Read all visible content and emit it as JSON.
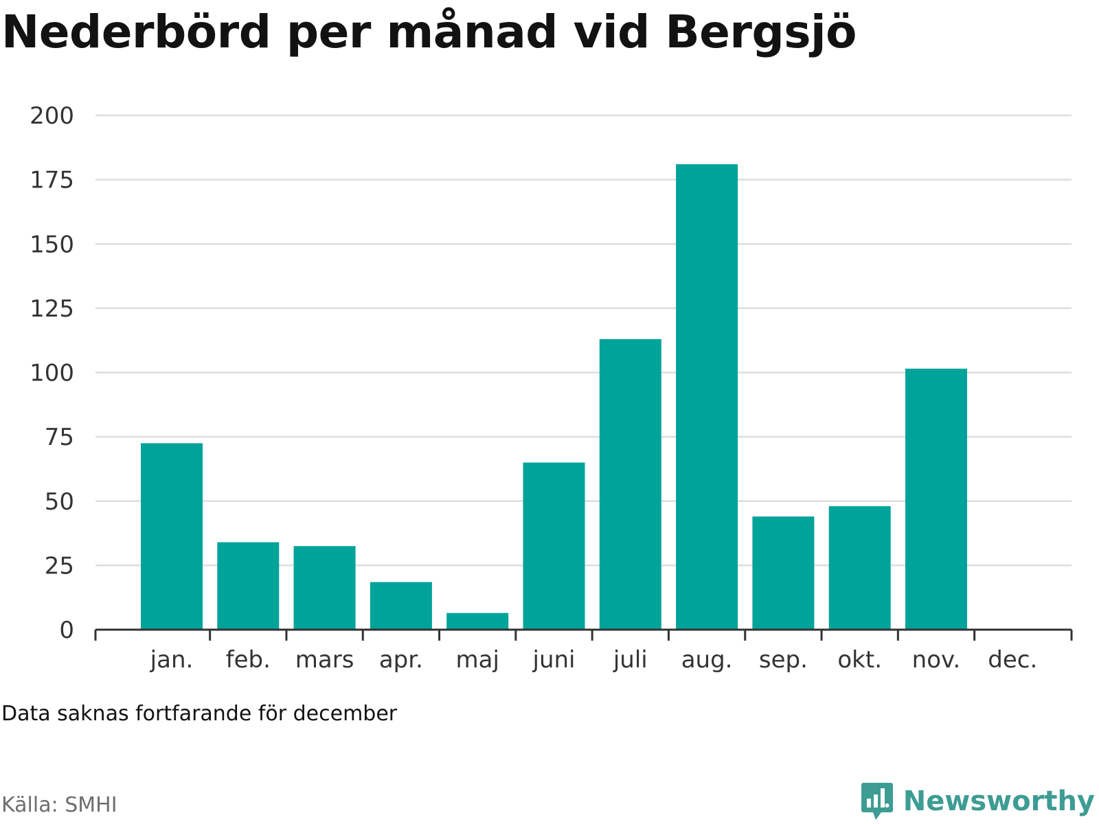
{
  "title": "Nederbörd per månad vid Bergsjö",
  "note": "Data saknas fortfarande för december",
  "source": "Källa: SMHI",
  "brand": {
    "name": "Newsworthy",
    "icon": "bar-chart-speech-bubble-icon"
  },
  "colors": {
    "bar": "#00a399",
    "grid": "#dddddd",
    "axis": "#333333",
    "text": "#333333",
    "brand": "#3d9c93"
  },
  "chart_data": {
    "type": "bar",
    "title": "Nederbörd per månad vid Bergsjö",
    "xlabel": "",
    "ylabel": "",
    "categories": [
      "jan.",
      "feb.",
      "mars",
      "apr.",
      "maj",
      "juni",
      "juli",
      "aug.",
      "sep.",
      "okt.",
      "nov.",
      "dec."
    ],
    "values": [
      72.5,
      34,
      32.5,
      18.5,
      6.5,
      65,
      113,
      181,
      44,
      48,
      101.5,
      null
    ],
    "ylim": [
      0,
      200
    ],
    "yticks": [
      0,
      25,
      50,
      75,
      100,
      125,
      150,
      175,
      200
    ],
    "grid": true,
    "legend": "none"
  }
}
